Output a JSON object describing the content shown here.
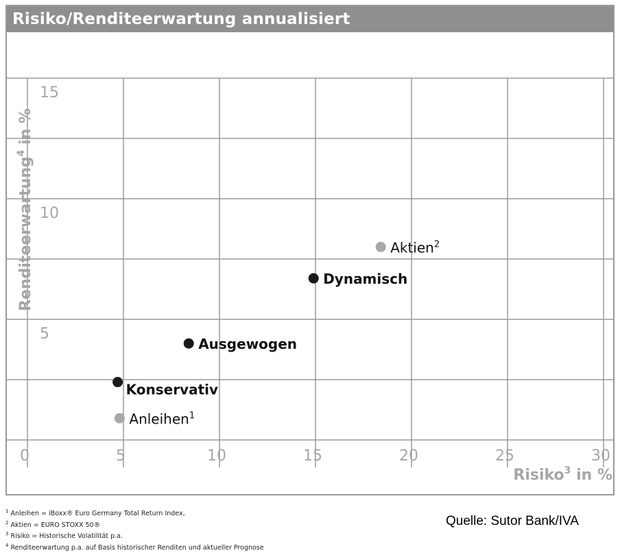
{
  "colors": {
    "header_bg": "#8f8f8f",
    "axis_text": "#a6a6a6",
    "grid": "#9a9a9a",
    "portfolio_point": "#1a1a1a",
    "index_point": "#a8a8a8"
  },
  "chart_data": {
    "type": "scatter",
    "title": "Risiko/Renditeerwartung annualisiert",
    "xlabel_main": "Risiko",
    "xlabel_sup": "3",
    "xlabel_unit": " in %",
    "ylabel_main": "Renditeerwartung",
    "ylabel_sup": "4",
    "ylabel_unit": " in %",
    "xlim": [
      0,
      30
    ],
    "ylim": [
      0,
      15
    ],
    "x_ticks": [
      "0",
      "5",
      "10",
      "15",
      "20",
      "25",
      "30"
    ],
    "y_ticks": [
      "5",
      "10",
      "15"
    ],
    "grid": "horizontal",
    "points": [
      {
        "name": "Anleihen",
        "sup": "1",
        "x": 4.8,
        "y": 0.9,
        "kind": "index",
        "bold": false
      },
      {
        "name": "Konservativ",
        "sup": "",
        "x": 4.7,
        "y": 2.4,
        "kind": "portfolio",
        "bold": true
      },
      {
        "name": "Ausgewogen",
        "sup": "",
        "x": 8.4,
        "y": 4.0,
        "kind": "portfolio",
        "bold": true
      },
      {
        "name": "Dynamisch",
        "sup": "",
        "x": 14.9,
        "y": 6.7,
        "kind": "portfolio",
        "bold": true
      },
      {
        "name": "Aktien",
        "sup": "2",
        "x": 18.4,
        "y": 8.0,
        "kind": "index",
        "bold": false
      }
    ]
  },
  "footnotes": [
    {
      "sup": "1",
      "text": " Anleihen = iBoxx® Euro Germany Total Return Index,"
    },
    {
      "sup": "2",
      "text": " Aktien = EURO STOXX 50®"
    },
    {
      "sup": "3",
      "text": " Risiko = Historische Volatilität p.a."
    },
    {
      "sup": "4",
      "text": " Renditeerwartung p.a. auf Basis historischer Renditen und aktueller Prognose"
    }
  ],
  "source": "Quelle: Sutor Bank/IVA"
}
